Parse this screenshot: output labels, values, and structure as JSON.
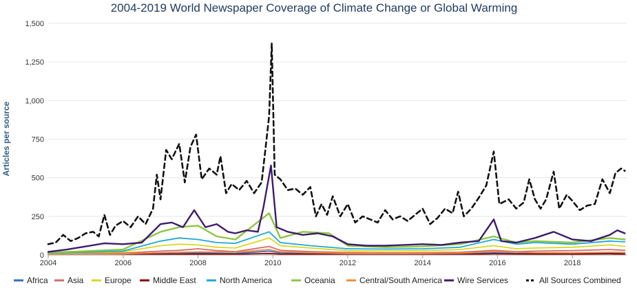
{
  "chart_data": {
    "type": "line",
    "title": "2004-2019 World Newspaper Coverage of Climate Change or Global Warming",
    "ylabel": "Articles per source",
    "xlabel": "",
    "xlim": [
      2004,
      2019.45
    ],
    "ylim": [
      0,
      1500
    ],
    "x_ticks": [
      2004,
      2006,
      2008,
      2010,
      2012,
      2014,
      2016,
      2018
    ],
    "x_tick_labels": [
      "2004",
      "2006",
      "2008",
      "2010",
      "2012",
      "2014",
      "2016",
      "2018"
    ],
    "y_ticks": [
      0,
      250,
      500,
      750,
      1000,
      1250,
      1500
    ],
    "y_tick_labels": [
      "0",
      "250",
      "500",
      "750",
      "1,000",
      "1,250",
      "1,500"
    ],
    "grid": true,
    "legend_position": "bottom",
    "series": [
      {
        "name": "Africa",
        "color": "#2f6fc0",
        "dashed": false,
        "points": [
          [
            2004,
            3
          ],
          [
            2005,
            5
          ],
          [
            2006,
            6
          ],
          [
            2007,
            12
          ],
          [
            2007.5,
            14
          ],
          [
            2008,
            12
          ],
          [
            2009,
            10
          ],
          [
            2009.9,
            25
          ],
          [
            2010.2,
            14
          ],
          [
            2011,
            10
          ],
          [
            2012,
            7
          ],
          [
            2013,
            6
          ],
          [
            2014,
            7
          ],
          [
            2015,
            9
          ],
          [
            2015.9,
            14
          ],
          [
            2016.5,
            10
          ],
          [
            2017,
            12
          ],
          [
            2018,
            12
          ],
          [
            2019,
            14
          ],
          [
            2019.4,
            13
          ]
        ]
      },
      {
        "name": "Asia",
        "color": "#d16b6b",
        "dashed": false,
        "points": [
          [
            2004,
            6
          ],
          [
            2005,
            9
          ],
          [
            2006,
            12
          ],
          [
            2007,
            25
          ],
          [
            2007.5,
            30
          ],
          [
            2008,
            40
          ],
          [
            2008.5,
            28
          ],
          [
            2009,
            22
          ],
          [
            2009.9,
            55
          ],
          [
            2010.2,
            30
          ],
          [
            2011,
            22
          ],
          [
            2012,
            16
          ],
          [
            2013,
            14
          ],
          [
            2014,
            15
          ],
          [
            2015,
            18
          ],
          [
            2015.9,
            30
          ],
          [
            2016.5,
            22
          ],
          [
            2017,
            25
          ],
          [
            2018,
            28
          ],
          [
            2019,
            35
          ],
          [
            2019.4,
            30
          ]
        ]
      },
      {
        "name": "Europe",
        "color": "#d8d820",
        "dashed": false,
        "points": [
          [
            2004,
            10
          ],
          [
            2005,
            15
          ],
          [
            2006,
            20
          ],
          [
            2007,
            60
          ],
          [
            2007.5,
            70
          ],
          [
            2008,
            65
          ],
          [
            2008.5,
            50
          ],
          [
            2009,
            45
          ],
          [
            2009.9,
            110
          ],
          [
            2010.2,
            60
          ],
          [
            2011,
            45
          ],
          [
            2012,
            28
          ],
          [
            2013,
            25
          ],
          [
            2014,
            28
          ],
          [
            2015,
            35
          ],
          [
            2015.9,
            60
          ],
          [
            2016.5,
            40
          ],
          [
            2017,
            45
          ],
          [
            2018,
            50
          ],
          [
            2019,
            65
          ],
          [
            2019.4,
            55
          ]
        ]
      },
      {
        "name": "Middle East",
        "color": "#8b0000",
        "dashed": false,
        "points": [
          [
            2004,
            2
          ],
          [
            2005,
            2
          ],
          [
            2006,
            3
          ],
          [
            2007,
            5
          ],
          [
            2008,
            6
          ],
          [
            2009,
            5
          ],
          [
            2009.9,
            10
          ],
          [
            2010.2,
            6
          ],
          [
            2011,
            5
          ],
          [
            2012,
            4
          ],
          [
            2013,
            3
          ],
          [
            2014,
            4
          ],
          [
            2015,
            4
          ],
          [
            2015.9,
            7
          ],
          [
            2017,
            6
          ],
          [
            2018,
            6
          ],
          [
            2019,
            7
          ],
          [
            2019.4,
            6
          ]
        ]
      },
      {
        "name": "North America",
        "color": "#1ea7d8",
        "dashed": false,
        "points": [
          [
            2004,
            12
          ],
          [
            2005,
            18
          ],
          [
            2006,
            25
          ],
          [
            2007,
            90
          ],
          [
            2007.5,
            110
          ],
          [
            2008,
            100
          ],
          [
            2008.5,
            80
          ],
          [
            2009,
            75
          ],
          [
            2009.9,
            150
          ],
          [
            2010.2,
            80
          ],
          [
            2011,
            60
          ],
          [
            2012,
            40
          ],
          [
            2013,
            38
          ],
          [
            2014,
            40
          ],
          [
            2015,
            50
          ],
          [
            2015.9,
            100
          ],
          [
            2016.5,
            70
          ],
          [
            2017,
            80
          ],
          [
            2018,
            70
          ],
          [
            2019,
            90
          ],
          [
            2019.4,
            85
          ]
        ]
      },
      {
        "name": "Oceania",
        "color": "#8cc63f",
        "dashed": false,
        "points": [
          [
            2004,
            15
          ],
          [
            2005,
            25
          ],
          [
            2006,
            35
          ],
          [
            2007,
            150
          ],
          [
            2007.5,
            180
          ],
          [
            2008,
            190
          ],
          [
            2008.5,
            120
          ],
          [
            2009,
            100
          ],
          [
            2009.9,
            270
          ],
          [
            2010.2,
            110
          ],
          [
            2010.8,
            150
          ],
          [
            2011.5,
            140
          ],
          [
            2012,
            60
          ],
          [
            2013,
            50
          ],
          [
            2014,
            55
          ],
          [
            2015,
            70
          ],
          [
            2015.9,
            120
          ],
          [
            2016.5,
            80
          ],
          [
            2017,
            90
          ],
          [
            2018,
            80
          ],
          [
            2019,
            110
          ],
          [
            2019.4,
            100
          ]
        ]
      },
      {
        "name": "Central/South America",
        "color": "#f08c3c",
        "dashed": false,
        "points": [
          [
            2004,
            3
          ],
          [
            2005,
            5
          ],
          [
            2006,
            7
          ],
          [
            2007,
            15
          ],
          [
            2008,
            20
          ],
          [
            2009,
            18
          ],
          [
            2009.9,
            35
          ],
          [
            2010.2,
            20
          ],
          [
            2011,
            15
          ],
          [
            2012,
            10
          ],
          [
            2013,
            9
          ],
          [
            2014,
            10
          ],
          [
            2015,
            12
          ],
          [
            2015.9,
            22
          ],
          [
            2017,
            15
          ],
          [
            2018,
            14
          ],
          [
            2019,
            18
          ],
          [
            2019.4,
            16
          ]
        ]
      },
      {
        "name": "Wire Services",
        "color": "#3d1a6e",
        "dashed": false,
        "points": [
          [
            2004,
            20
          ],
          [
            2004.5,
            35
          ],
          [
            2005,
            55
          ],
          [
            2005.5,
            75
          ],
          [
            2006,
            70
          ],
          [
            2006.5,
            80
          ],
          [
            2007,
            200
          ],
          [
            2007.3,
            210
          ],
          [
            2007.6,
            180
          ],
          [
            2007.9,
            290
          ],
          [
            2008.2,
            180
          ],
          [
            2008.5,
            200
          ],
          [
            2008.8,
            150
          ],
          [
            2009,
            140
          ],
          [
            2009.3,
            160
          ],
          [
            2009.6,
            150
          ],
          [
            2009.75,
            310
          ],
          [
            2009.95,
            580
          ],
          [
            2010.1,
            180
          ],
          [
            2010.4,
            150
          ],
          [
            2010.8,
            130
          ],
          [
            2011.2,
            140
          ],
          [
            2011.6,
            120
          ],
          [
            2012,
            70
          ],
          [
            2012.5,
            60
          ],
          [
            2013,
            60
          ],
          [
            2013.5,
            65
          ],
          [
            2014,
            70
          ],
          [
            2014.5,
            65
          ],
          [
            2015,
            80
          ],
          [
            2015.5,
            90
          ],
          [
            2015.9,
            230
          ],
          [
            2016.1,
            90
          ],
          [
            2016.5,
            80
          ],
          [
            2017,
            110
          ],
          [
            2017.5,
            150
          ],
          [
            2018,
            100
          ],
          [
            2018.5,
            90
          ],
          [
            2019,
            130
          ],
          [
            2019.2,
            160
          ],
          [
            2019.4,
            140
          ]
        ]
      },
      {
        "name": "All Sources Combined",
        "color": "#111111",
        "dashed": true,
        "points": [
          [
            2004,
            70
          ],
          [
            2004.2,
            80
          ],
          [
            2004.4,
            130
          ],
          [
            2004.6,
            90
          ],
          [
            2004.8,
            110
          ],
          [
            2005,
            140
          ],
          [
            2005.2,
            150
          ],
          [
            2005.35,
            120
          ],
          [
            2005.5,
            260
          ],
          [
            2005.65,
            130
          ],
          [
            2005.8,
            190
          ],
          [
            2006,
            220
          ],
          [
            2006.2,
            180
          ],
          [
            2006.4,
            250
          ],
          [
            2006.6,
            200
          ],
          [
            2006.8,
            300
          ],
          [
            2006.9,
            520
          ],
          [
            2007,
            360
          ],
          [
            2007.15,
            680
          ],
          [
            2007.3,
            620
          ],
          [
            2007.5,
            720
          ],
          [
            2007.65,
            470
          ],
          [
            2007.8,
            700
          ],
          [
            2007.95,
            780
          ],
          [
            2008.1,
            490
          ],
          [
            2008.3,
            560
          ],
          [
            2008.5,
            520
          ],
          [
            2008.6,
            640
          ],
          [
            2008.75,
            400
          ],
          [
            2008.9,
            460
          ],
          [
            2009.1,
            420
          ],
          [
            2009.3,
            480
          ],
          [
            2009.5,
            400
          ],
          [
            2009.7,
            470
          ],
          [
            2009.8,
            680
          ],
          [
            2009.9,
            900
          ],
          [
            2009.97,
            1370
          ],
          [
            2010.05,
            520
          ],
          [
            2010.2,
            490
          ],
          [
            2010.4,
            420
          ],
          [
            2010.6,
            430
          ],
          [
            2010.8,
            390
          ],
          [
            2011,
            440
          ],
          [
            2011.15,
            250
          ],
          [
            2011.3,
            330
          ],
          [
            2011.45,
            260
          ],
          [
            2011.6,
            380
          ],
          [
            2011.8,
            250
          ],
          [
            2012,
            330
          ],
          [
            2012.2,
            210
          ],
          [
            2012.4,
            250
          ],
          [
            2012.6,
            230
          ],
          [
            2012.8,
            210
          ],
          [
            2013,
            290
          ],
          [
            2013.2,
            230
          ],
          [
            2013.4,
            250
          ],
          [
            2013.6,
            220
          ],
          [
            2013.8,
            260
          ],
          [
            2014,
            300
          ],
          [
            2014.2,
            200
          ],
          [
            2014.4,
            240
          ],
          [
            2014.6,
            300
          ],
          [
            2014.8,
            270
          ],
          [
            2014.95,
            410
          ],
          [
            2015.1,
            250
          ],
          [
            2015.3,
            300
          ],
          [
            2015.5,
            370
          ],
          [
            2015.7,
            450
          ],
          [
            2015.9,
            670
          ],
          [
            2016.05,
            330
          ],
          [
            2016.3,
            360
          ],
          [
            2016.5,
            300
          ],
          [
            2016.7,
            340
          ],
          [
            2016.85,
            490
          ],
          [
            2017,
            360
          ],
          [
            2017.15,
            300
          ],
          [
            2017.3,
            360
          ],
          [
            2017.5,
            540
          ],
          [
            2017.65,
            300
          ],
          [
            2017.85,
            390
          ],
          [
            2018,
            350
          ],
          [
            2018.2,
            290
          ],
          [
            2018.4,
            320
          ],
          [
            2018.6,
            330
          ],
          [
            2018.8,
            490
          ],
          [
            2019,
            400
          ],
          [
            2019.15,
            530
          ],
          [
            2019.3,
            560
          ],
          [
            2019.4,
            545
          ]
        ]
      }
    ]
  }
}
